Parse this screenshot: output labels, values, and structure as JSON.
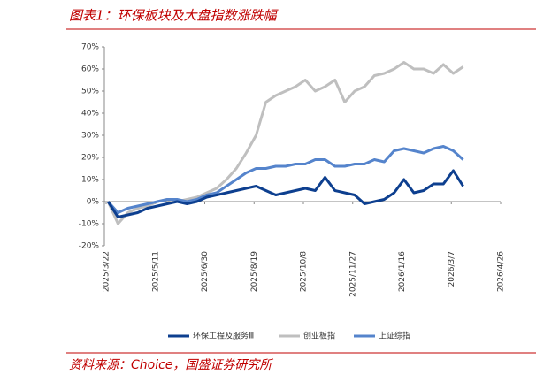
{
  "chart_data": {
    "type": "line",
    "title": "图表1：环保板块及大盘指数涨跌幅",
    "source": "资料来源：Choice，国盛证券研究所",
    "x": [
      "2025/3/24",
      "2025/4/3",
      "2025/4/13",
      "2025/4/23",
      "2025/5/3",
      "2025/5/13",
      "2025/5/23",
      "2025/6/2",
      "2025/6/12",
      "2025/6/22",
      "2025/7/2",
      "2025/7/12",
      "2025/7/22",
      "2025/8/1",
      "2025/8/11",
      "2025/8/21",
      "2025/8/31",
      "2025/9/10",
      "2025/9/20",
      "2025/9/30",
      "2025/10/10",
      "2025/10/20",
      "2025/10/30",
      "2025/11/9",
      "2025/11/19",
      "2025/11/29",
      "2025/12/9",
      "2025/12/19",
      "2025/12/29",
      "2026/1/8",
      "2026/1/18",
      "2026/1/28",
      "2026/2/7",
      "2026/2/17",
      "2026/2/27",
      "2026/3/9",
      "2026/3/19"
    ],
    "series": [
      {
        "name": "环保工程及服务Ⅲ",
        "color": "#0d3f8f",
        "width": 3,
        "values": [
          0,
          -7,
          -6,
          -5,
          -3,
          -2,
          -1,
          0,
          -1,
          0,
          2,
          3,
          4,
          5,
          6,
          7,
          5,
          3,
          4,
          5,
          6,
          5,
          11,
          5,
          4,
          3,
          -1,
          0,
          1,
          4,
          10,
          4,
          5,
          8,
          8,
          14,
          7
        ]
      },
      {
        "name": "创业板指",
        "color": "#bfbfbf",
        "width": 3,
        "values": [
          0,
          -10,
          -5,
          -3,
          -2,
          0,
          1,
          0,
          1,
          2,
          4,
          6,
          10,
          15,
          22,
          30,
          45,
          48,
          50,
          52,
          55,
          50,
          52,
          55,
          45,
          50,
          52,
          57,
          58,
          60,
          63,
          60,
          60,
          58,
          62,
          58,
          61
        ]
      },
      {
        "name": "上证综指",
        "color": "#5584cc",
        "width": 3,
        "values": [
          0,
          -5,
          -3,
          -2,
          -1,
          0,
          1,
          1,
          0,
          1,
          3,
          4,
          7,
          10,
          13,
          15,
          15,
          16,
          16,
          17,
          17,
          19,
          19,
          16,
          16,
          17,
          17,
          19,
          18,
          23,
          24,
          23,
          22,
          24,
          25,
          23,
          19
        ]
      }
    ],
    "xlim": [
      "2025/3/22",
      "2026/4/26"
    ],
    "xticks": [
      "2025/3/22",
      "2025/5/11",
      "2025/6/30",
      "2025/8/19",
      "2025/10/8",
      "2025/11/27",
      "2026/1/16",
      "2026/3/7",
      "2026/4/26"
    ],
    "ylim": [
      -20,
      70
    ],
    "yticks": [
      {
        "value": -20,
        "label": "-20%"
      },
      {
        "value": -10,
        "label": "-10%"
      },
      {
        "value": 0,
        "label": "0%"
      },
      {
        "value": 10,
        "label": "10%"
      },
      {
        "value": 20,
        "label": "20%"
      },
      {
        "value": 30,
        "label": "30%"
      },
      {
        "value": 40,
        "label": "40%"
      },
      {
        "value": 50,
        "label": "50%"
      },
      {
        "value": 60,
        "label": "60%"
      },
      {
        "value": 70,
        "label": "70%"
      }
    ],
    "legend": "bottom"
  }
}
